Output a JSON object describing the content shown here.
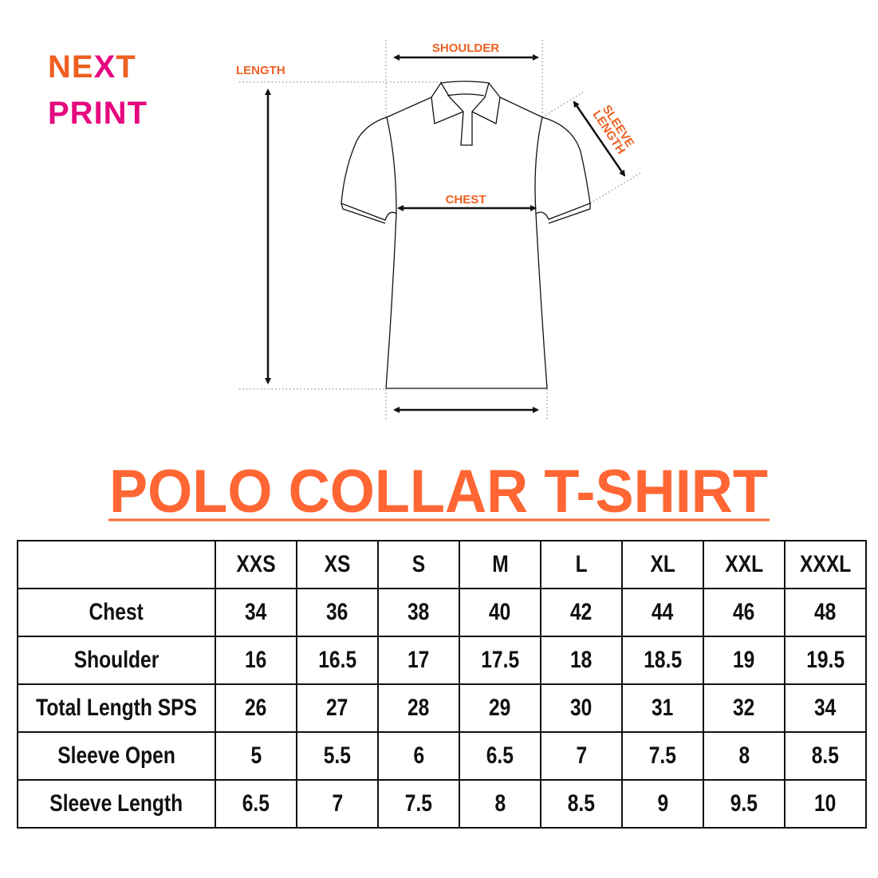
{
  "logo": {
    "line1_a": "NE",
    "line1_x": "X",
    "line1_b": "T",
    "line2": "PRINT",
    "colors": {
      "orange": "#ee6022",
      "magenta": "#e6087f"
    }
  },
  "diagram": {
    "shoulder": "SHOULDER",
    "length": "LENGTH",
    "chest": "CHEST",
    "sleeve_line1": "SLEEVE",
    "sleeve_line2": "LENGTH",
    "label_color": "#ee6022"
  },
  "title": "POLO COLLAR T-SHIRT",
  "title_color": "#ff6633",
  "table": {
    "sizes": [
      "XXS",
      "XS",
      "S",
      "M",
      "L",
      "XL",
      "XXL",
      "XXXL"
    ],
    "rows": [
      {
        "label": "Chest",
        "values": [
          "34",
          "36",
          "38",
          "40",
          "42",
          "44",
          "46",
          "48"
        ]
      },
      {
        "label": "Shoulder",
        "values": [
          "16",
          "16.5",
          "17",
          "17.5",
          "18",
          "18.5",
          "19",
          "19.5"
        ]
      },
      {
        "label": "Total Length SPS",
        "values": [
          "26",
          "27",
          "28",
          "29",
          "30",
          "31",
          "32",
          "34"
        ]
      },
      {
        "label": "Sleeve Open",
        "values": [
          "5",
          "5.5",
          "6",
          "6.5",
          "7",
          "7.5",
          "8",
          "8.5"
        ]
      },
      {
        "label": "Sleeve Length",
        "values": [
          "6.5",
          "7",
          "7.5",
          "8",
          "8.5",
          "9",
          "9.5",
          "10"
        ]
      }
    ]
  }
}
